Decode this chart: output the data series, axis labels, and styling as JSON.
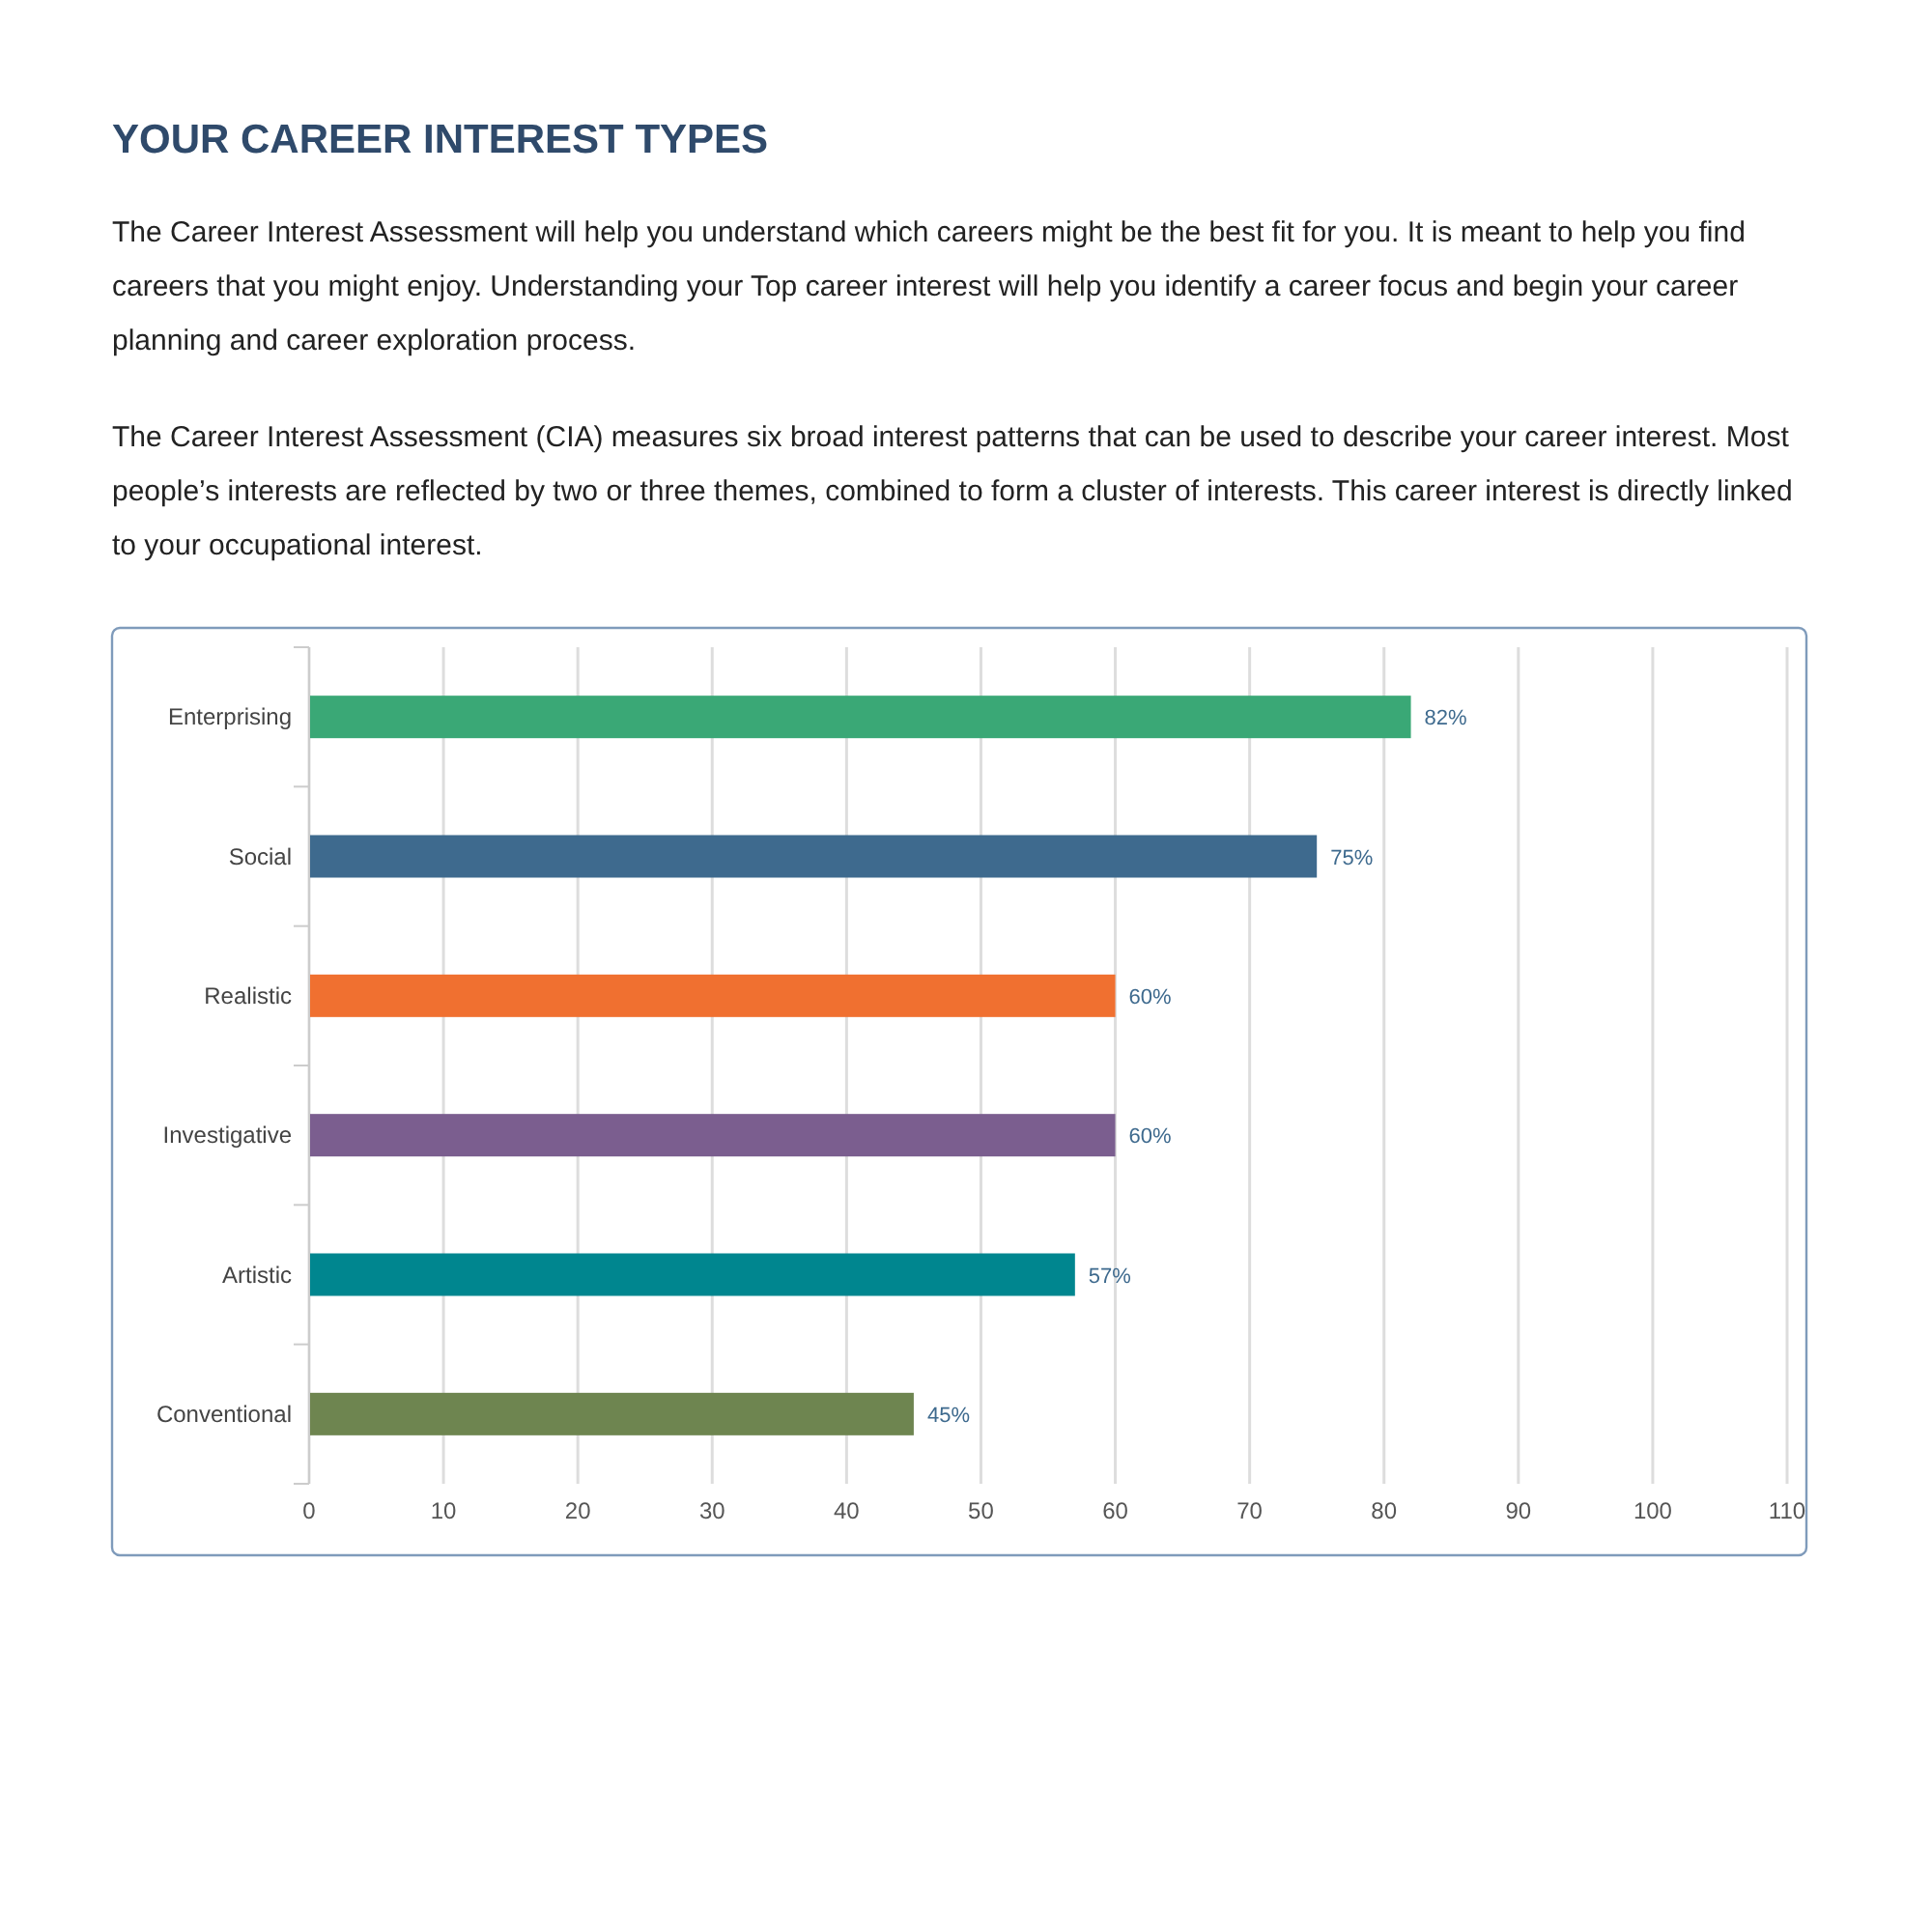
{
  "chart_data": {
    "type": "bar",
    "orientation": "horizontal",
    "title": "YOUR CAREER INTEREST TYPES",
    "subtitle": "The Career Interest Assessment will help you understand which careers might be the best fit for you. It is meant to help you find careers that you might enjoy. Understanding your Top career interest will help you identify a career focus and begin your career planning and career exploration process.",
    "annotations": [
      "The Career Interest Assessment (CIA) measures six broad interest patterns that can be used to describe your career interest. Most people’s interests are reflected by two or three themes, combined to form a cluster of interests. This career interest is directly linked to your occupational interest."
    ],
    "categories": [
      "Enterprising",
      "Social",
      "Realistic",
      "Investigative",
      "Artistic",
      "Conventional"
    ],
    "values": [
      82,
      75,
      60,
      60,
      57,
      45
    ],
    "colors": [
      "#3aa876",
      "#3e6a8e",
      "#f07030",
      "#7b5e8f",
      "#00868f",
      "#6e8550"
    ],
    "value_labels": [
      "82%",
      "75%",
      "60%",
      "60%",
      "57%",
      "45%"
    ],
    "xlim": [
      0,
      110
    ],
    "xticks": [
      0,
      10,
      20,
      30,
      40,
      50,
      60,
      70,
      80,
      90,
      100,
      110
    ],
    "grid": "x"
  }
}
